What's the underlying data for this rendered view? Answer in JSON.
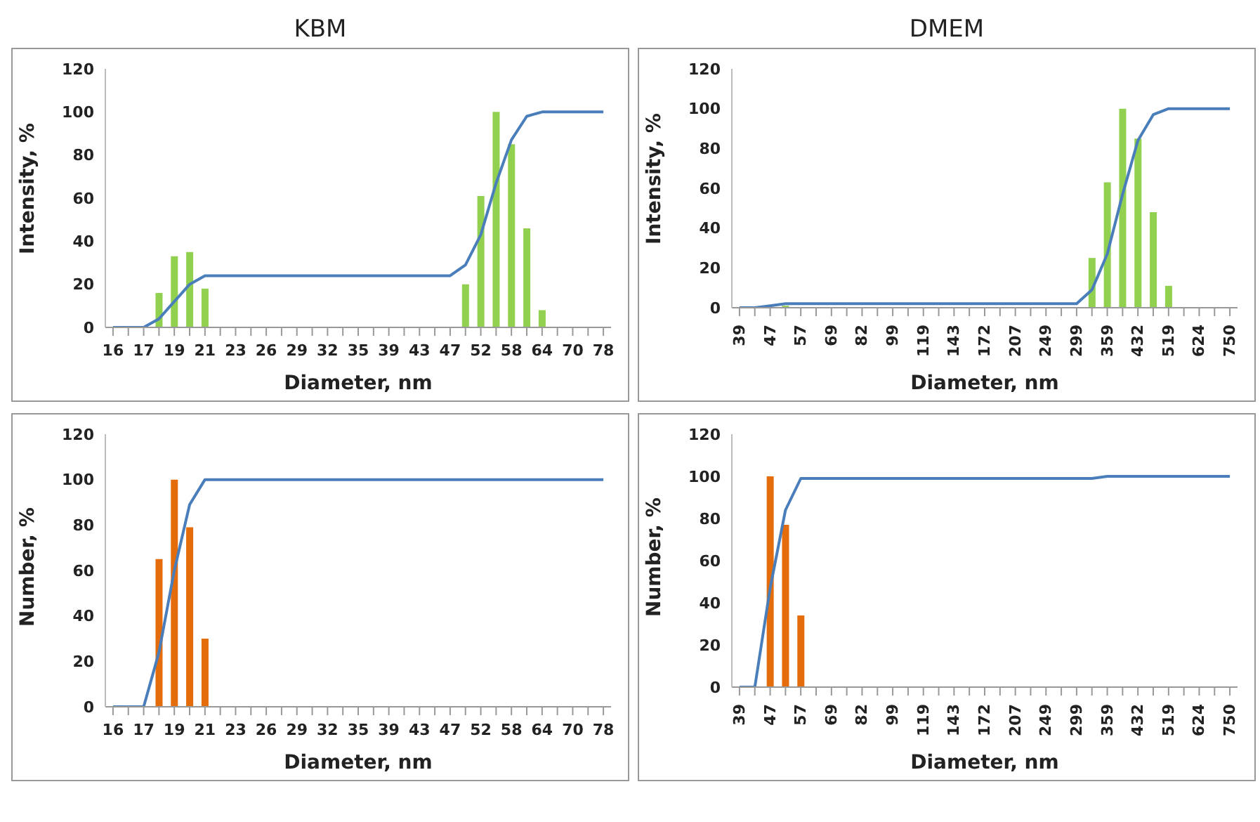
{
  "chart_data": [
    {
      "type": "bar",
      "title": "KBM",
      "xlabel": "Diameter, nm",
      "ylabel": "Intensity, %",
      "categories": [
        "16",
        null,
        "17",
        null,
        "19",
        null,
        "21",
        null,
        "23",
        null,
        "26",
        null,
        "29",
        null,
        "32",
        null,
        "35",
        null,
        "39",
        null,
        "43",
        null,
        "47",
        null,
        "52",
        null,
        "58",
        null,
        "64",
        null,
        "70",
        null,
        "78"
      ],
      "series": [
        {
          "color": "#92d050",
          "values": [
            0,
            0,
            0,
            16,
            33,
            35,
            18,
            0,
            0,
            0,
            0,
            0,
            0,
            0,
            0,
            0,
            0,
            0,
            0,
            0,
            0,
            0,
            0,
            20,
            61,
            100,
            85,
            46,
            8,
            0,
            0,
            0,
            0
          ]
        },
        {
          "type": "line",
          "color": "#4a7ebb",
          "values": [
            0,
            0,
            0,
            4,
            12,
            20,
            24,
            24,
            24,
            24,
            24,
            24,
            24,
            24,
            24,
            24,
            24,
            24,
            24,
            24,
            24,
            24,
            24,
            29,
            43,
            67,
            87,
            98,
            100,
            100,
            100,
            100,
            100
          ]
        }
      ],
      "ylim": [
        0,
        120
      ],
      "yticks": [
        0,
        20,
        40,
        60,
        80,
        100,
        120
      ],
      "grid": false,
      "legend": false
    },
    {
      "type": "bar",
      "title": "DMEM",
      "xlabel": "Diameter, nm",
      "ylabel": "Intensity, %",
      "categories": [
        "39",
        null,
        "47",
        null,
        "57",
        null,
        "69",
        null,
        "82",
        null,
        "99",
        null,
        "119",
        null,
        "143",
        null,
        "172",
        null,
        "207",
        null,
        "249",
        null,
        "299",
        null,
        "359",
        null,
        "432",
        null,
        "519",
        null,
        "624",
        null,
        "750"
      ],
      "series": [
        {
          "color": "#92d050",
          "values": [
            0,
            0,
            null,
            1,
            0,
            0,
            0,
            0,
            0,
            0,
            0,
            0,
            0,
            0,
            0,
            0,
            0,
            0,
            0,
            0,
            0,
            0,
            0,
            25,
            63,
            100,
            85,
            48,
            11,
            0,
            0,
            0,
            0
          ]
        },
        {
          "type": "line",
          "color": "#4a7ebb",
          "values": [
            0,
            0,
            1,
            2,
            2,
            2,
            2,
            2,
            2,
            2,
            2,
            2,
            2,
            2,
            2,
            2,
            2,
            2,
            2,
            2,
            2,
            2,
            2,
            9,
            27,
            57,
            84,
            97,
            100,
            100,
            100,
            100,
            100
          ]
        }
      ],
      "ylim": [
        0,
        120
      ],
      "yticks": [
        0,
        20,
        40,
        60,
        80,
        100,
        120
      ],
      "grid": false,
      "legend": false
    },
    {
      "type": "bar",
      "xlabel": "Diameter, nm",
      "ylabel": "Number, %",
      "categories": [
        "16",
        null,
        "17",
        null,
        "19",
        null,
        "21",
        null,
        "23",
        null,
        "26",
        null,
        "29",
        null,
        "32",
        null,
        "35",
        null,
        "39",
        null,
        "43",
        null,
        "47",
        null,
        "52",
        null,
        "58",
        null,
        "64",
        null,
        "70",
        null,
        "78"
      ],
      "series": [
        {
          "color": "#e46c0a",
          "values": [
            0,
            0,
            0,
            65,
            100,
            79,
            30,
            0,
            0,
            0,
            0,
            0,
            0,
            0,
            0,
            0,
            0,
            0,
            0,
            0,
            0,
            0,
            0,
            0,
            0,
            0,
            0,
            0,
            0,
            0,
            0,
            0,
            0
          ]
        },
        {
          "type": "line",
          "color": "#4a7ebb",
          "values": [
            0,
            0,
            0,
            24,
            60,
            89,
            100,
            100,
            100,
            100,
            100,
            100,
            100,
            100,
            100,
            100,
            100,
            100,
            100,
            100,
            100,
            100,
            100,
            100,
            100,
            100,
            100,
            100,
            100,
            100,
            100,
            100,
            100
          ]
        }
      ],
      "ylim": [
        0,
        120
      ],
      "yticks": [
        0,
        20,
        40,
        60,
        80,
        100,
        120
      ],
      "grid": false,
      "legend": false
    },
    {
      "type": "bar",
      "xlabel": "Diameter, nm",
      "ylabel": "Number, %",
      "categories": [
        "39",
        null,
        "47",
        null,
        "57",
        null,
        "69",
        null,
        "82",
        null,
        "99",
        null,
        "119",
        null,
        "143",
        null,
        "172",
        null,
        "207",
        null,
        "249",
        null,
        "299",
        null,
        "359",
        null,
        "432",
        null,
        "519",
        null,
        "624",
        null,
        "750"
      ],
      "series": [
        {
          "color": "#e46c0a",
          "values": [
            0,
            0,
            100,
            77,
            34,
            0,
            0,
            0,
            0,
            0,
            0,
            0,
            0,
            0,
            0,
            0,
            0,
            0,
            0,
            0,
            0,
            0,
            0,
            0,
            0,
            0,
            0,
            0,
            0,
            0,
            0,
            0,
            0
          ]
        },
        {
          "type": "line",
          "color": "#4a7ebb",
          "values": [
            0,
            0,
            47,
            84,
            99,
            99,
            99,
            99,
            99,
            99,
            99,
            99,
            99,
            99,
            99,
            99,
            99,
            99,
            99,
            99,
            99,
            99,
            99,
            99,
            100,
            100,
            100,
            100,
            100,
            100,
            100,
            100,
            100
          ]
        }
      ],
      "ylim": [
        0,
        120
      ],
      "yticks": [
        0,
        20,
        40,
        60,
        80,
        100,
        120
      ],
      "grid": false,
      "legend": false
    }
  ]
}
